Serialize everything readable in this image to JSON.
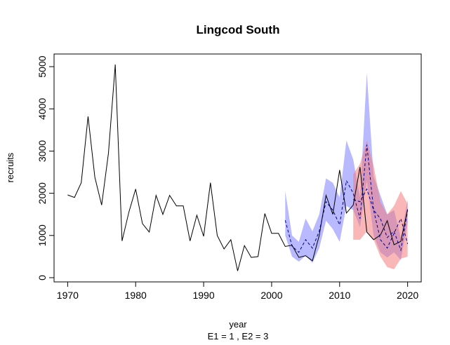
{
  "chart_data": {
    "type": "line",
    "title": "Lingcod South",
    "xlabel": "year",
    "subtitle": "E1 = 1 , E2 = 3",
    "ylabel": "recruits",
    "xlim": [
      1968,
      2022
    ],
    "ylim": [
      -100,
      5300
    ],
    "xticks": [
      1970,
      1980,
      1990,
      2000,
      2010,
      2020
    ],
    "yticks": [
      0,
      1000,
      2000,
      3000,
      4000,
      5000
    ],
    "grid": false,
    "series": [
      {
        "role": "observed",
        "color": "#000000",
        "style": "solid",
        "x": [
          1970,
          1971,
          1972,
          1973,
          1974,
          1975,
          1976,
          1977,
          1978,
          1979,
          1980,
          1981,
          1982,
          1983,
          1984,
          1985,
          1986,
          1987,
          1988,
          1989,
          1990,
          1991,
          1992,
          1993,
          1994,
          1995,
          1996,
          1997,
          1998,
          1999,
          2000,
          2001,
          2002,
          2003,
          2004,
          2005,
          2006,
          2007,
          2008,
          2009,
          2010,
          2011,
          2012,
          2013,
          2014,
          2015,
          2016,
          2017,
          2018,
          2019,
          2020
        ],
        "y": [
          1960,
          1900,
          2250,
          3820,
          2380,
          1720,
          2950,
          5050,
          870,
          1550,
          2100,
          1280,
          1080,
          1950,
          1500,
          1950,
          1700,
          1700,
          870,
          1480,
          980,
          2250,
          1000,
          680,
          900,
          160,
          760,
          480,
          500,
          1520,
          1050,
          1050,
          740,
          770,
          480,
          520,
          400,
          1000,
          1950,
          1500,
          2550,
          1530,
          1720,
          2620,
          1080,
          900,
          1010,
          1350,
          780,
          860,
          1620
        ]
      },
      {
        "role": "forecast-E1",
        "color": "#00008B",
        "style": "dashed",
        "band_color": "#8080FF",
        "x": [
          2002,
          2003,
          2004,
          2005,
          2006,
          2007,
          2008,
          2009,
          2010,
          2011,
          2012,
          2013,
          2014,
          2015,
          2016,
          2017,
          2018,
          2019,
          2020
        ],
        "y": [
          1360,
          750,
          600,
          900,
          700,
          1100,
          1800,
          1600,
          1250,
          2300,
          2000,
          1400,
          3150,
          1600,
          1400,
          950,
          1100,
          650,
          1600
        ],
        "lower": [
          1000,
          500,
          380,
          520,
          350,
          700,
          1350,
          1150,
          850,
          1700,
          1600,
          1200,
          2300,
          1000,
          600,
          480,
          600,
          420,
          1300
        ],
        "upper": [
          2050,
          1000,
          850,
          1400,
          1100,
          1500,
          2350,
          2250,
          1900,
          3250,
          2800,
          1900,
          4850,
          2400,
          1950,
          1500,
          1600,
          950,
          1850
        ]
      },
      {
        "role": "forecast-E2",
        "color": "#00008B",
        "style": "dashed",
        "band_color": "#F47C7C",
        "x": [
          2012,
          2013,
          2014,
          2015,
          2016,
          2017,
          2018,
          2019,
          2020
        ],
        "y": [
          1850,
          1800,
          2100,
          1600,
          900,
          700,
          1050,
          1400,
          800
        ],
        "lower": [
          900,
          900,
          1100,
          900,
          500,
          250,
          200,
          450,
          500
        ],
        "upper": [
          2450,
          2700,
          3250,
          2650,
          1800,
          1500,
          1700,
          2050,
          1750
        ]
      }
    ]
  }
}
